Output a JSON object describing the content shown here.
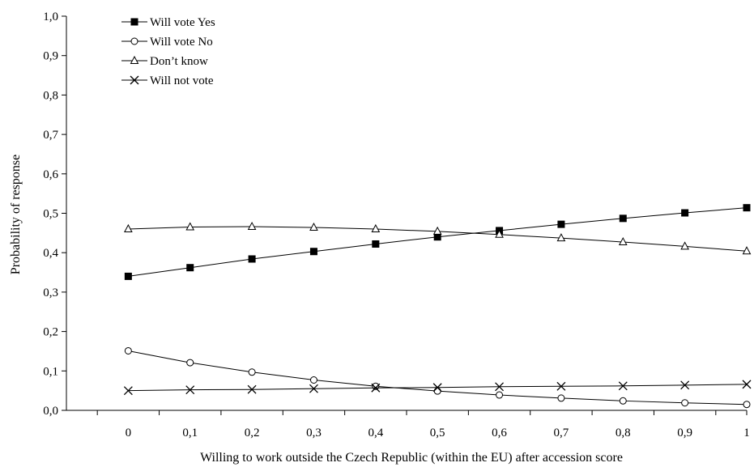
{
  "chart_data": {
    "type": "line",
    "title": "",
    "xlabel": "Willing to work outside the Czech Republic (within the EU) after accession score",
    "ylabel": "Probability of response",
    "x": [
      0,
      0.1,
      0.2,
      0.3,
      0.4,
      0.5,
      0.6,
      0.7,
      0.8,
      0.9,
      1
    ],
    "x_tick_labels": [
      "0",
      "0,1",
      "0,2",
      "0,3",
      "0,4",
      "0,5",
      "0,6",
      "0,7",
      "0,8",
      "0,9",
      "1"
    ],
    "xlim": [
      -0.1,
      1
    ],
    "ylim": [
      0,
      1
    ],
    "y_ticks": [
      0,
      0.1,
      0.2,
      0.3,
      0.4,
      0.5,
      0.6,
      0.7,
      0.8,
      0.9,
      1
    ],
    "y_tick_labels": [
      "0,0",
      "0,1",
      "0,2",
      "0,3",
      "0,4",
      "0,5",
      "0,6",
      "0,7",
      "0,8",
      "0,9",
      "1,0"
    ],
    "grid": false,
    "legend_position": "top-left",
    "series": [
      {
        "name": "Will vote Yes",
        "marker": "filled-square",
        "values": [
          0.34,
          0.362,
          0.384,
          0.403,
          0.422,
          0.44,
          0.456,
          0.472,
          0.487,
          0.501,
          0.514
        ]
      },
      {
        "name": "Will vote No",
        "marker": "open-circle",
        "values": [
          0.151,
          0.121,
          0.097,
          0.077,
          0.061,
          0.049,
          0.039,
          0.031,
          0.024,
          0.019,
          0.015
        ]
      },
      {
        "name": "Don’t know",
        "marker": "open-triangle",
        "values": [
          0.46,
          0.465,
          0.466,
          0.464,
          0.46,
          0.454,
          0.446,
          0.437,
          0.427,
          0.416,
          0.404
        ]
      },
      {
        "name": "Will not vote",
        "marker": "x-cross",
        "values": [
          0.05,
          0.052,
          0.053,
          0.055,
          0.057,
          0.058,
          0.06,
          0.061,
          0.062,
          0.064,
          0.066
        ]
      }
    ]
  }
}
